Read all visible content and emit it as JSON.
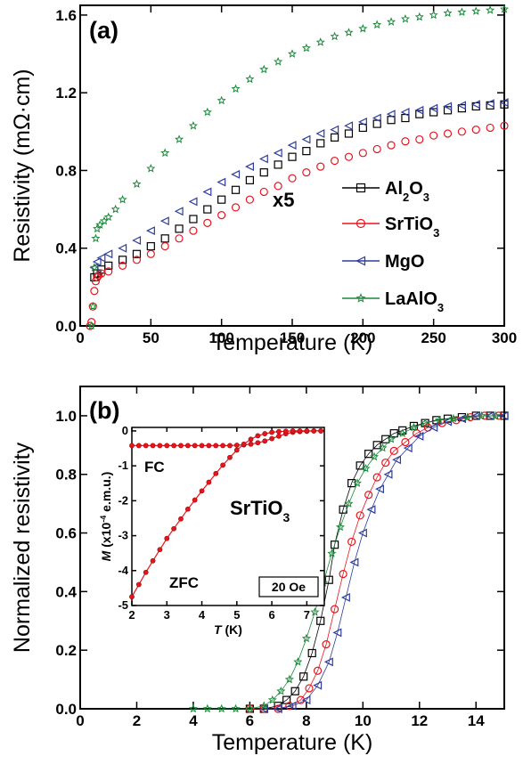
{
  "chart_data": [
    {
      "panel": "(a)",
      "type": "scatter",
      "xlabel": "Temperature (K)",
      "ylabel": "Resistivity (mΩ·cm)",
      "xlim": [
        0,
        300
      ],
      "ylim": [
        0,
        1.65
      ],
      "xticks": [
        "0",
        "50",
        "100",
        "150",
        "200",
        "250",
        "300"
      ],
      "yticks": [
        "0.0",
        "0.4",
        "0.8",
        "1.2",
        "1.6"
      ],
      "annotation": "x5",
      "legend_position": "right",
      "series": [
        {
          "name": "Al₂O₃",
          "name_base": "Al",
          "name_sub1": "2",
          "name_mid": "O",
          "name_sub2": "3",
          "color": "#000000",
          "marker": "square",
          "x": [
            10,
            12,
            15,
            20,
            30,
            40,
            50,
            60,
            70,
            80,
            90,
            100,
            110,
            120,
            130,
            140,
            150,
            160,
            170,
            180,
            190,
            200,
            210,
            220,
            230,
            240,
            250,
            260,
            270,
            280,
            290,
            300
          ],
          "y": [
            0.25,
            0.27,
            0.29,
            0.31,
            0.34,
            0.37,
            0.41,
            0.45,
            0.5,
            0.55,
            0.6,
            0.65,
            0.7,
            0.75,
            0.79,
            0.83,
            0.87,
            0.9,
            0.94,
            0.97,
            0.99,
            1.02,
            1.04,
            1.06,
            1.07,
            1.09,
            1.1,
            1.11,
            1.12,
            1.13,
            1.135,
            1.14
          ]
        },
        {
          "name": "SrTiO₃",
          "name_base": "SrTiO",
          "name_sub1": "3",
          "name_mid": "",
          "name_sub2": "",
          "color": "#e8141c",
          "marker": "circle",
          "x": [
            7,
            8,
            9,
            10,
            11,
            12,
            13,
            15,
            20,
            30,
            40,
            50,
            60,
            70,
            80,
            90,
            100,
            110,
            120,
            130,
            140,
            150,
            160,
            170,
            180,
            190,
            200,
            210,
            220,
            230,
            240,
            250,
            260,
            270,
            280,
            290,
            300
          ],
          "y": [
            0.0,
            0.02,
            0.1,
            0.18,
            0.23,
            0.25,
            0.26,
            0.27,
            0.28,
            0.31,
            0.34,
            0.37,
            0.41,
            0.45,
            0.49,
            0.53,
            0.57,
            0.61,
            0.65,
            0.69,
            0.72,
            0.76,
            0.79,
            0.82,
            0.85,
            0.87,
            0.89,
            0.91,
            0.93,
            0.95,
            0.96,
            0.98,
            0.99,
            1.0,
            1.01,
            1.02,
            1.03
          ]
        },
        {
          "name": "MgO",
          "name_base": "MgO",
          "name_sub1": "",
          "name_mid": "",
          "name_sub2": "",
          "color": "#2e3d9c",
          "marker": "triangle-left",
          "x": [
            10,
            12,
            15,
            20,
            30,
            40,
            50,
            60,
            70,
            80,
            90,
            100,
            110,
            120,
            130,
            140,
            150,
            160,
            170,
            180,
            190,
            200,
            210,
            220,
            230,
            240,
            250,
            260,
            270,
            280,
            290,
            300
          ],
          "y": [
            0.3,
            0.33,
            0.35,
            0.37,
            0.4,
            0.44,
            0.49,
            0.54,
            0.59,
            0.64,
            0.69,
            0.74,
            0.78,
            0.82,
            0.86,
            0.89,
            0.93,
            0.96,
            0.99,
            1.01,
            1.03,
            1.05,
            1.07,
            1.09,
            1.1,
            1.11,
            1.12,
            1.13,
            1.135,
            1.14,
            1.145,
            1.15
          ]
        },
        {
          "name": "LaAlO₃",
          "name_base": "LaAlO",
          "name_sub1": "3",
          "name_mid": "",
          "name_sub2": "",
          "color": "#1a8a3a",
          "marker": "star",
          "x": [
            8,
            9,
            10,
            11,
            12,
            14,
            17,
            20,
            25,
            30,
            40,
            50,
            60,
            70,
            80,
            90,
            100,
            110,
            120,
            130,
            140,
            150,
            160,
            170,
            180,
            190,
            200,
            210,
            220,
            230,
            240,
            250,
            260,
            270,
            280,
            290,
            300
          ],
          "y": [
            0.0,
            0.1,
            0.3,
            0.45,
            0.5,
            0.52,
            0.54,
            0.56,
            0.6,
            0.65,
            0.73,
            0.81,
            0.89,
            0.96,
            1.03,
            1.1,
            1.16,
            1.22,
            1.27,
            1.32,
            1.36,
            1.4,
            1.43,
            1.46,
            1.49,
            1.51,
            1.53,
            1.55,
            1.565,
            1.58,
            1.59,
            1.6,
            1.61,
            1.615,
            1.62,
            1.625,
            1.63
          ]
        }
      ]
    },
    {
      "panel": "(b)",
      "type": "scatter",
      "xlabel": "Temperature (K)",
      "ylabel": "Normalized resistivity",
      "xlim": [
        0,
        15
      ],
      "ylim": [
        0,
        1.1
      ],
      "xticks": [
        "0",
        "2",
        "4",
        "6",
        "8",
        "10",
        "12",
        "14"
      ],
      "yticks": [
        "0.0",
        "0.2",
        "0.4",
        "0.6",
        "0.8",
        "1.0"
      ],
      "series": [
        {
          "color": "#000000",
          "marker": "square",
          "x": [
            6.0,
            6.5,
            7.0,
            7.3,
            7.6,
            7.9,
            8.2,
            8.5,
            8.8,
            9.0,
            9.3,
            9.6,
            9.9,
            10.2,
            10.5,
            10.8,
            11.1,
            11.4,
            11.8,
            12.2,
            12.6,
            13.0,
            13.5,
            14.0,
            14.5,
            15.0
          ],
          "y": [
            0.0,
            0.0,
            0.01,
            0.03,
            0.06,
            0.11,
            0.19,
            0.3,
            0.44,
            0.56,
            0.68,
            0.77,
            0.83,
            0.87,
            0.9,
            0.92,
            0.94,
            0.95,
            0.965,
            0.975,
            0.985,
            0.99,
            0.995,
            1.0,
            1.0,
            1.0
          ]
        },
        {
          "color": "#e8141c",
          "marker": "circle",
          "x": [
            6.0,
            6.5,
            7.0,
            7.4,
            7.8,
            8.1,
            8.4,
            8.7,
            9.0,
            9.3,
            9.6,
            9.9,
            10.2,
            10.5,
            10.8,
            11.1,
            11.5,
            11.9,
            12.3,
            12.8,
            13.3,
            13.8,
            14.3,
            14.8
          ],
          "y": [
            0.0,
            0.0,
            0.0,
            0.01,
            0.03,
            0.07,
            0.13,
            0.22,
            0.34,
            0.46,
            0.57,
            0.66,
            0.73,
            0.79,
            0.84,
            0.88,
            0.91,
            0.94,
            0.96,
            0.975,
            0.985,
            0.995,
            1.0,
            1.0
          ]
        },
        {
          "color": "#2e3d9c",
          "marker": "triangle-left",
          "x": [
            6.5,
            7.0,
            7.5,
            8.0,
            8.4,
            8.8,
            9.1,
            9.4,
            9.7,
            10.0,
            10.3,
            10.6,
            10.9,
            11.2,
            11.6,
            12.0,
            12.5,
            13.0,
            13.5,
            14.0,
            14.5,
            15.0
          ],
          "y": [
            0.0,
            0.0,
            0.01,
            0.03,
            0.08,
            0.16,
            0.26,
            0.38,
            0.5,
            0.6,
            0.68,
            0.75,
            0.8,
            0.85,
            0.89,
            0.93,
            0.96,
            0.98,
            0.99,
            1.0,
            1.0,
            1.0
          ]
        },
        {
          "color": "#1a8a3a",
          "marker": "star",
          "x": [
            4.0,
            4.5,
            5.0,
            5.5,
            6.0,
            6.5,
            6.8,
            7.1,
            7.4,
            7.7,
            8.0,
            8.3,
            8.6,
            8.9,
            9.2,
            9.5,
            9.8,
            10.1,
            10.4,
            10.7,
            11.0,
            11.4,
            11.8,
            12.2,
            12.7,
            13.2,
            13.7,
            14.2,
            14.7
          ],
          "y": [
            0.0,
            0.0,
            0.0,
            0.0,
            0.0,
            0.01,
            0.03,
            0.06,
            0.1,
            0.16,
            0.24,
            0.33,
            0.43,
            0.53,
            0.62,
            0.7,
            0.77,
            0.82,
            0.86,
            0.89,
            0.92,
            0.94,
            0.96,
            0.975,
            0.985,
            0.99,
            0.995,
            1.0,
            1.0
          ]
        }
      ]
    },
    {
      "panel": "inset",
      "type": "line",
      "xlabel_italic": "T",
      "xlabel_rest": " (K)",
      "ylabel_italic": "M",
      "ylabel_rest": " (x10",
      "ylabel_sup": "-4",
      "ylabel_tail": " e.m.u.)",
      "xlim": [
        2,
        7.5
      ],
      "ylim": [
        -5,
        0.1
      ],
      "xticks": [
        "2",
        "3",
        "4",
        "5",
        "6",
        "7"
      ],
      "yticks": [
        "0",
        "-1",
        "-2",
        "-3",
        "-4",
        "-5"
      ],
      "label_fc": "FC",
      "label_zfc": "ZFC",
      "label_sample_base": "SrTiO",
      "label_sample_sub": "3",
      "field_box": "20 Oe",
      "series": [
        {
          "name": "FC",
          "color": "#e8141c",
          "x": [
            2.0,
            2.2,
            2.4,
            2.6,
            2.8,
            3.0,
            3.2,
            3.4,
            3.6,
            3.8,
            4.0,
            4.2,
            4.4,
            4.6,
            4.8,
            5.0,
            5.2,
            5.4,
            5.6,
            5.8,
            6.0,
            6.2,
            6.4,
            6.6,
            6.8,
            7.0,
            7.2,
            7.4
          ],
          "y": [
            -0.42,
            -0.42,
            -0.42,
            -0.42,
            -0.42,
            -0.42,
            -0.42,
            -0.42,
            -0.42,
            -0.42,
            -0.42,
            -0.42,
            -0.42,
            -0.42,
            -0.42,
            -0.41,
            -0.4,
            -0.38,
            -0.34,
            -0.29,
            -0.22,
            -0.15,
            -0.08,
            -0.04,
            -0.02,
            -0.01,
            0.0,
            0.0
          ]
        },
        {
          "name": "ZFC",
          "color": "#e8141c",
          "x": [
            2.0,
            2.2,
            2.4,
            2.6,
            2.8,
            3.0,
            3.2,
            3.4,
            3.6,
            3.8,
            4.0,
            4.2,
            4.4,
            4.6,
            4.8,
            5.0,
            5.2,
            5.4,
            5.6,
            5.8,
            6.0,
            6.2,
            6.4,
            6.6,
            6.8,
            7.0,
            7.2,
            7.4
          ],
          "y": [
            -4.75,
            -4.4,
            -4.05,
            -3.72,
            -3.4,
            -3.08,
            -2.8,
            -2.52,
            -2.24,
            -1.98,
            -1.72,
            -1.47,
            -1.22,
            -0.98,
            -0.76,
            -0.55,
            -0.38,
            -0.24,
            -0.14,
            -0.08,
            -0.04,
            -0.02,
            -0.01,
            0.0,
            0.0,
            0.0,
            0.0,
            0.0
          ]
        }
      ]
    }
  ]
}
